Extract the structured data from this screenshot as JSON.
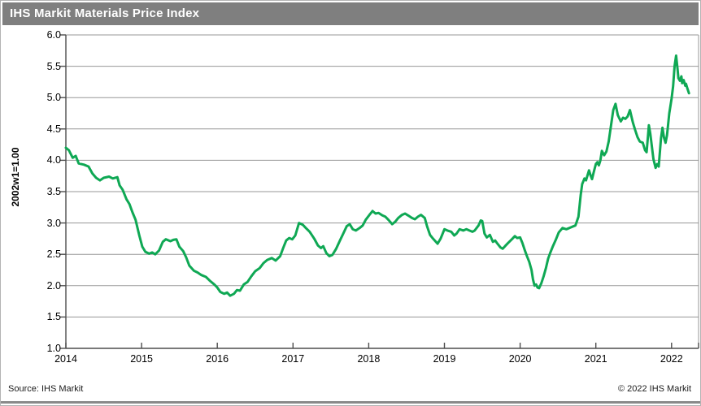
{
  "header": {
    "title": "IHS Markit Materials Price Index",
    "bg_color": "#7f7f7f",
    "text_color": "#ffffff"
  },
  "footer": {
    "source": "Source: IHS Markit",
    "copyright": "© 2022 IHS Markit"
  },
  "chart_data": {
    "type": "line",
    "title": "IHS Markit Materials Price Index",
    "xlabel": "",
    "ylabel": "2002w1=1.00",
    "x_ticks": [
      2014,
      2015,
      2016,
      2017,
      2018,
      2019,
      2020,
      2021,
      2022
    ],
    "y_ticks": [
      1.0,
      1.5,
      2.0,
      2.5,
      3.0,
      3.5,
      4.0,
      4.5,
      5.0,
      5.5,
      6.0
    ],
    "ylim": [
      1.0,
      6.0
    ],
    "xlim": [
      2014.0,
      2022.36
    ],
    "grid": "horizontal",
    "legend": "none",
    "line_color": "#0fa854",
    "grid_color": "#979797",
    "axis_color": "#4d4d4d",
    "series": [
      {
        "name": "Materials Price Index (2002w1=1.00)",
        "color": "#0fa854",
        "points": [
          [
            2014.0,
            4.2
          ],
          [
            2014.04,
            4.16
          ],
          [
            2014.09,
            4.04
          ],
          [
            2014.13,
            4.07
          ],
          [
            2014.17,
            3.95
          ],
          [
            2014.24,
            3.93
          ],
          [
            2014.3,
            3.9
          ],
          [
            2014.35,
            3.79
          ],
          [
            2014.4,
            3.72
          ],
          [
            2014.45,
            3.68
          ],
          [
            2014.5,
            3.72
          ],
          [
            2014.57,
            3.74
          ],
          [
            2014.62,
            3.71
          ],
          [
            2014.68,
            3.73
          ],
          [
            2014.71,
            3.6
          ],
          [
            2014.75,
            3.53
          ],
          [
            2014.8,
            3.38
          ],
          [
            2014.84,
            3.3
          ],
          [
            2014.88,
            3.17
          ],
          [
            2014.92,
            3.05
          ],
          [
            2014.97,
            2.8
          ],
          [
            2015.01,
            2.62
          ],
          [
            2015.05,
            2.54
          ],
          [
            2015.1,
            2.51
          ],
          [
            2015.14,
            2.53
          ],
          [
            2015.18,
            2.5
          ],
          [
            2015.23,
            2.56
          ],
          [
            2015.28,
            2.7
          ],
          [
            2015.32,
            2.74
          ],
          [
            2015.38,
            2.71
          ],
          [
            2015.42,
            2.73
          ],
          [
            2015.46,
            2.74
          ],
          [
            2015.5,
            2.62
          ],
          [
            2015.55,
            2.55
          ],
          [
            2015.59,
            2.45
          ],
          [
            2015.63,
            2.32
          ],
          [
            2015.69,
            2.24
          ],
          [
            2015.74,
            2.21
          ],
          [
            2015.79,
            2.17
          ],
          [
            2015.85,
            2.14
          ],
          [
            2015.9,
            2.08
          ],
          [
            2015.96,
            2.02
          ],
          [
            2016.0,
            1.97
          ],
          [
            2016.04,
            1.9
          ],
          [
            2016.09,
            1.87
          ],
          [
            2016.13,
            1.89
          ],
          [
            2016.17,
            1.84
          ],
          [
            2016.22,
            1.87
          ],
          [
            2016.26,
            1.93
          ],
          [
            2016.3,
            1.92
          ],
          [
            2016.35,
            2.02
          ],
          [
            2016.4,
            2.06
          ],
          [
            2016.45,
            2.15
          ],
          [
            2016.5,
            2.23
          ],
          [
            2016.56,
            2.28
          ],
          [
            2016.61,
            2.36
          ],
          [
            2016.66,
            2.41
          ],
          [
            2016.72,
            2.44
          ],
          [
            2016.77,
            2.4
          ],
          [
            2016.83,
            2.47
          ],
          [
            2016.87,
            2.6
          ],
          [
            2016.91,
            2.72
          ],
          [
            2016.95,
            2.76
          ],
          [
            2016.99,
            2.74
          ],
          [
            2017.03,
            2.8
          ],
          [
            2017.08,
            3.0
          ],
          [
            2017.13,
            2.97
          ],
          [
            2017.17,
            2.92
          ],
          [
            2017.22,
            2.86
          ],
          [
            2017.28,
            2.75
          ],
          [
            2017.33,
            2.64
          ],
          [
            2017.37,
            2.6
          ],
          [
            2017.4,
            2.63
          ],
          [
            2017.44,
            2.52
          ],
          [
            2017.48,
            2.47
          ],
          [
            2017.52,
            2.49
          ],
          [
            2017.57,
            2.59
          ],
          [
            2017.62,
            2.72
          ],
          [
            2017.66,
            2.82
          ],
          [
            2017.71,
            2.95
          ],
          [
            2017.75,
            2.98
          ],
          [
            2017.79,
            2.9
          ],
          [
            2017.83,
            2.88
          ],
          [
            2017.88,
            2.92
          ],
          [
            2017.92,
            2.96
          ],
          [
            2017.96,
            3.05
          ],
          [
            2018.01,
            3.13
          ],
          [
            2018.05,
            3.19
          ],
          [
            2018.09,
            3.15
          ],
          [
            2018.13,
            3.16
          ],
          [
            2018.18,
            3.12
          ],
          [
            2018.22,
            3.1
          ],
          [
            2018.26,
            3.05
          ],
          [
            2018.31,
            2.98
          ],
          [
            2018.35,
            3.02
          ],
          [
            2018.39,
            3.08
          ],
          [
            2018.44,
            3.13
          ],
          [
            2018.48,
            3.15
          ],
          [
            2018.52,
            3.12
          ],
          [
            2018.57,
            3.08
          ],
          [
            2018.61,
            3.06
          ],
          [
            2018.65,
            3.1
          ],
          [
            2018.69,
            3.13
          ],
          [
            2018.74,
            3.08
          ],
          [
            2018.77,
            2.95
          ],
          [
            2018.81,
            2.81
          ],
          [
            2018.85,
            2.75
          ],
          [
            2018.91,
            2.67
          ],
          [
            2018.95,
            2.75
          ],
          [
            2019.0,
            2.9
          ],
          [
            2019.04,
            2.88
          ],
          [
            2019.09,
            2.86
          ],
          [
            2019.13,
            2.8
          ],
          [
            2019.16,
            2.83
          ],
          [
            2019.2,
            2.9
          ],
          [
            2019.25,
            2.88
          ],
          [
            2019.29,
            2.9
          ],
          [
            2019.33,
            2.88
          ],
          [
            2019.37,
            2.86
          ],
          [
            2019.4,
            2.88
          ],
          [
            2019.45,
            2.96
          ],
          [
            2019.48,
            3.04
          ],
          [
            2019.5,
            3.03
          ],
          [
            2019.53,
            2.83
          ],
          [
            2019.56,
            2.77
          ],
          [
            2019.6,
            2.81
          ],
          [
            2019.64,
            2.7
          ],
          [
            2019.67,
            2.72
          ],
          [
            2019.7,
            2.67
          ],
          [
            2019.74,
            2.61
          ],
          [
            2019.77,
            2.59
          ],
          [
            2019.8,
            2.63
          ],
          [
            2019.84,
            2.68
          ],
          [
            2019.89,
            2.74
          ],
          [
            2019.93,
            2.79
          ],
          [
            2019.96,
            2.76
          ],
          [
            2020.0,
            2.77
          ],
          [
            2020.03,
            2.68
          ],
          [
            2020.06,
            2.57
          ],
          [
            2020.09,
            2.47
          ],
          [
            2020.12,
            2.38
          ],
          [
            2020.15,
            2.25
          ],
          [
            2020.17,
            2.1
          ],
          [
            2020.19,
            2.0
          ],
          [
            2020.21,
            2.02
          ],
          [
            2020.23,
            1.97
          ],
          [
            2020.25,
            1.96
          ],
          [
            2020.28,
            2.04
          ],
          [
            2020.31,
            2.15
          ],
          [
            2020.34,
            2.28
          ],
          [
            2020.37,
            2.43
          ],
          [
            2020.4,
            2.53
          ],
          [
            2020.43,
            2.62
          ],
          [
            2020.47,
            2.73
          ],
          [
            2020.51,
            2.85
          ],
          [
            2020.56,
            2.92
          ],
          [
            2020.61,
            2.9
          ],
          [
            2020.65,
            2.92
          ],
          [
            2020.69,
            2.94
          ],
          [
            2020.73,
            2.96
          ],
          [
            2020.77,
            3.1
          ],
          [
            2020.8,
            3.45
          ],
          [
            2020.82,
            3.62
          ],
          [
            2020.85,
            3.71
          ],
          [
            2020.87,
            3.68
          ],
          [
            2020.91,
            3.84
          ],
          [
            2020.93,
            3.76
          ],
          [
            2020.95,
            3.7
          ],
          [
            2020.97,
            3.8
          ],
          [
            2021.0,
            3.94
          ],
          [
            2021.02,
            3.97
          ],
          [
            2021.04,
            3.92
          ],
          [
            2021.06,
            4.0
          ],
          [
            2021.08,
            4.15
          ],
          [
            2021.11,
            4.08
          ],
          [
            2021.14,
            4.14
          ],
          [
            2021.17,
            4.3
          ],
          [
            2021.2,
            4.55
          ],
          [
            2021.23,
            4.8
          ],
          [
            2021.26,
            4.9
          ],
          [
            2021.29,
            4.72
          ],
          [
            2021.33,
            4.62
          ],
          [
            2021.36,
            4.68
          ],
          [
            2021.39,
            4.66
          ],
          [
            2021.42,
            4.7
          ],
          [
            2021.45,
            4.8
          ],
          [
            2021.49,
            4.6
          ],
          [
            2021.52,
            4.48
          ],
          [
            2021.55,
            4.37
          ],
          [
            2021.58,
            4.3
          ],
          [
            2021.62,
            4.28
          ],
          [
            2021.65,
            4.16
          ],
          [
            2021.67,
            4.13
          ],
          [
            2021.69,
            4.4
          ],
          [
            2021.7,
            4.56
          ],
          [
            2021.72,
            4.42
          ],
          [
            2021.76,
            4.02
          ],
          [
            2021.79,
            3.88
          ],
          [
            2021.81,
            3.94
          ],
          [
            2021.83,
            3.9
          ],
          [
            2021.86,
            4.35
          ],
          [
            2021.88,
            4.52
          ],
          [
            2021.9,
            4.36
          ],
          [
            2021.92,
            4.28
          ],
          [
            2021.94,
            4.4
          ],
          [
            2021.97,
            4.75
          ],
          [
            2022.0,
            4.98
          ],
          [
            2022.02,
            5.18
          ],
          [
            2022.04,
            5.5
          ],
          [
            2022.06,
            5.67
          ],
          [
            2022.08,
            5.45
          ],
          [
            2022.09,
            5.31
          ],
          [
            2022.11,
            5.27
          ],
          [
            2022.13,
            5.34
          ],
          [
            2022.14,
            5.23
          ],
          [
            2022.16,
            5.28
          ],
          [
            2022.18,
            5.19
          ],
          [
            2022.19,
            5.22
          ],
          [
            2022.21,
            5.14
          ],
          [
            2022.23,
            5.07
          ]
        ]
      }
    ]
  }
}
